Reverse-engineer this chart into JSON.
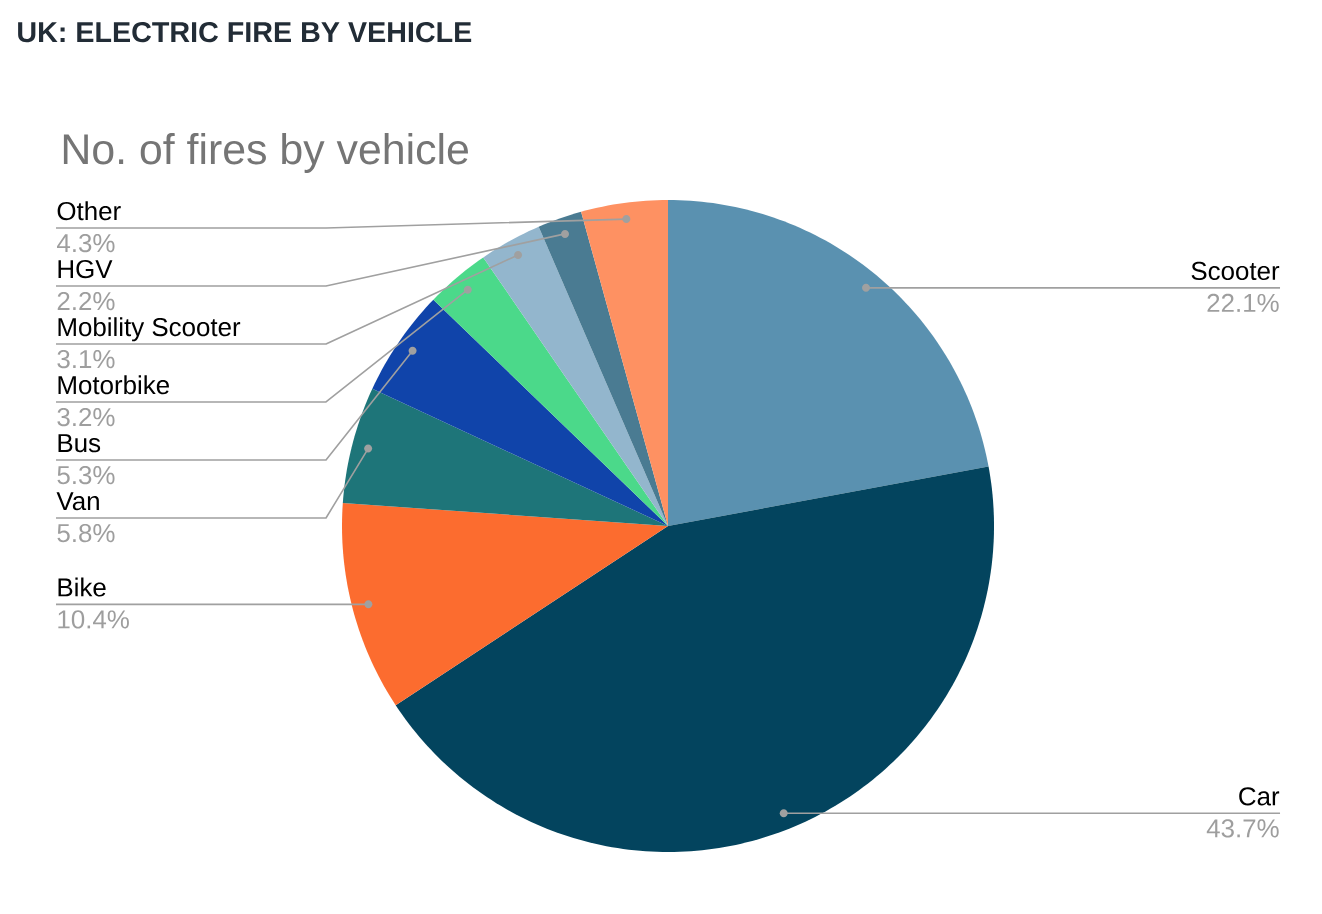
{
  "chart_data": {
    "type": "pie",
    "title": "UK: ELECTRIC FIRE BY VEHICLE",
    "subtitle": "No. of fires by vehicle",
    "categories": [
      "Scooter",
      "Car",
      "Bike",
      "Van",
      "Bus",
      "Motorbike",
      "Mobility Scooter",
      "HGV",
      "Other"
    ],
    "values": [
      22.1,
      43.7,
      10.4,
      5.8,
      5.3,
      3.2,
      3.1,
      2.2,
      4.3
    ],
    "value_labels": [
      "22.1%",
      "43.7%",
      "10.4%",
      "5.8%",
      "5.3%",
      "3.2%",
      "3.1%",
      "2.2%",
      "4.3%"
    ],
    "colors": [
      "#5a91b0",
      "#03445e",
      "#fc6c2f",
      "#1e7579",
      "#1044aa",
      "#4bd98a",
      "#93b6cd",
      "#4a7b92",
      "#fe9162"
    ]
  }
}
